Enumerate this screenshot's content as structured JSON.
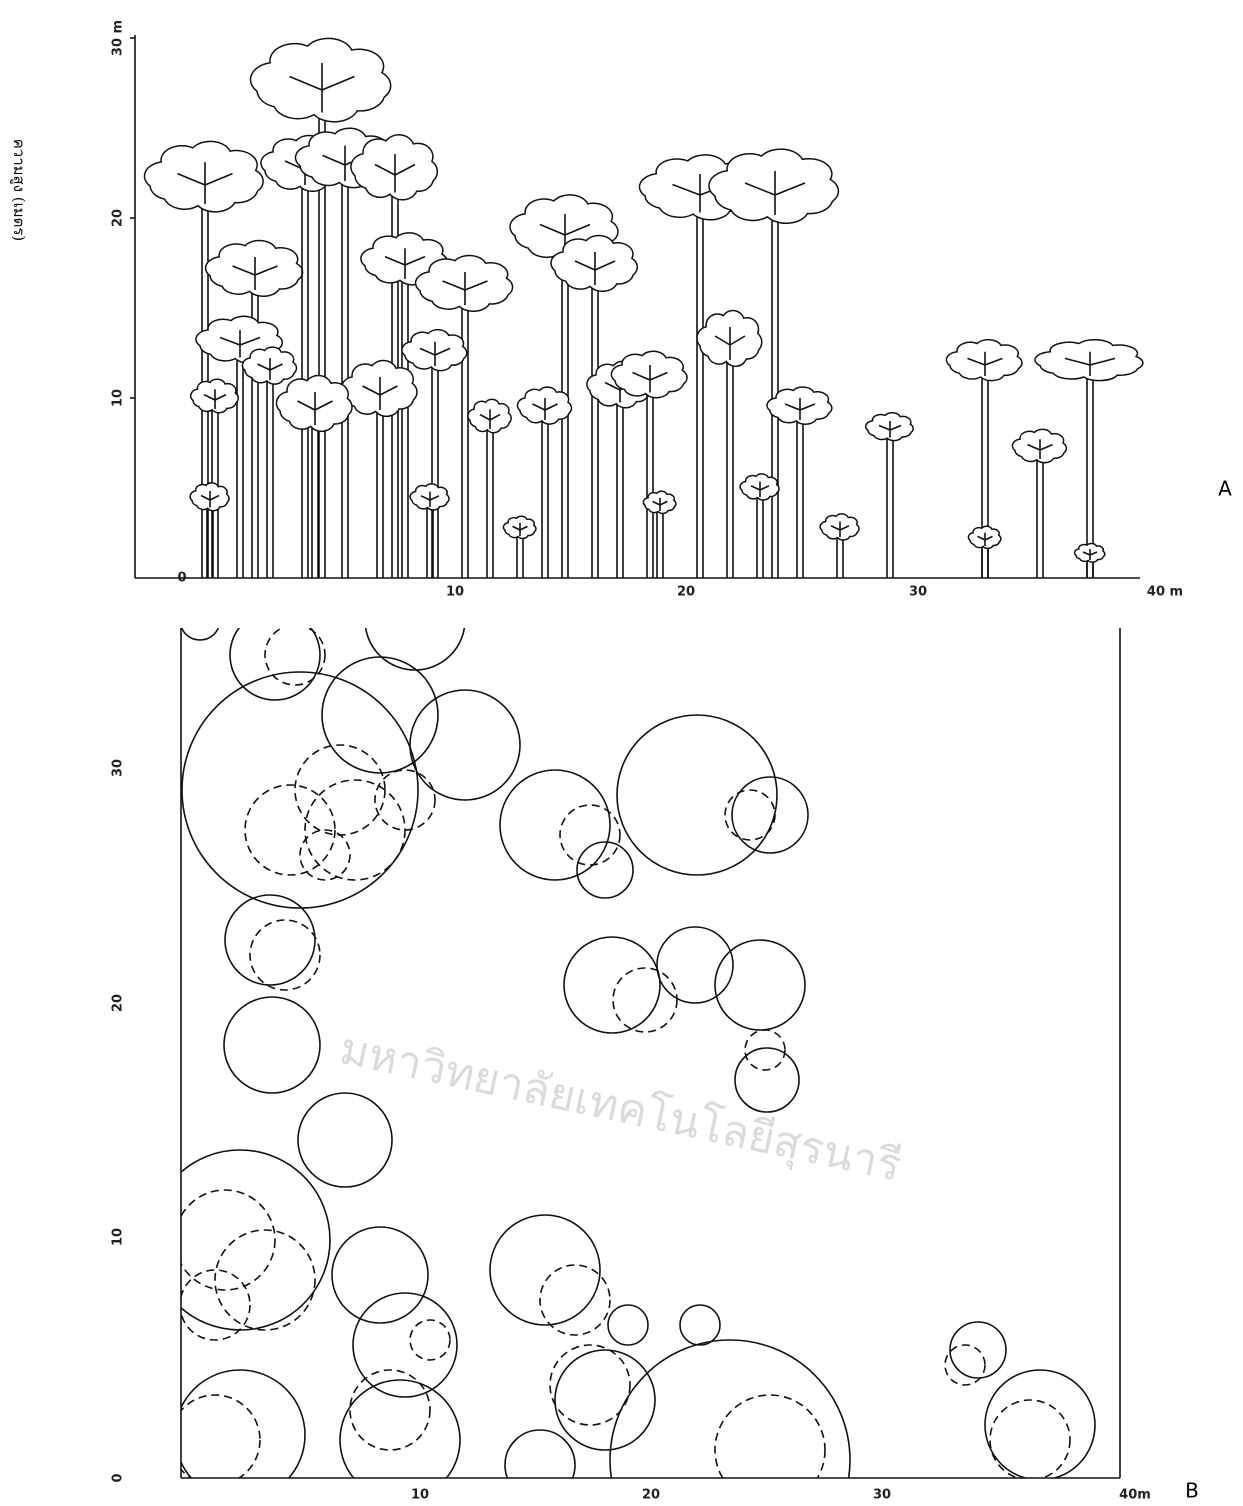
{
  "y_axis_label": "ความสูง (เมตร)",
  "panel_a": {
    "label": "A",
    "origin": "0",
    "y_ticks": [
      "10",
      "20",
      "30 m"
    ],
    "x_ticks": [
      "10",
      "20",
      "30",
      "40 m"
    ]
  },
  "panel_b": {
    "label": "B",
    "y_ticks": [
      "0",
      "10",
      "20",
      "30"
    ],
    "x_ticks": [
      "10",
      "20",
      "30",
      "40m"
    ]
  },
  "watermark": "มหาวิทยาลัยเทคโนโลยีสุรนารี"
}
